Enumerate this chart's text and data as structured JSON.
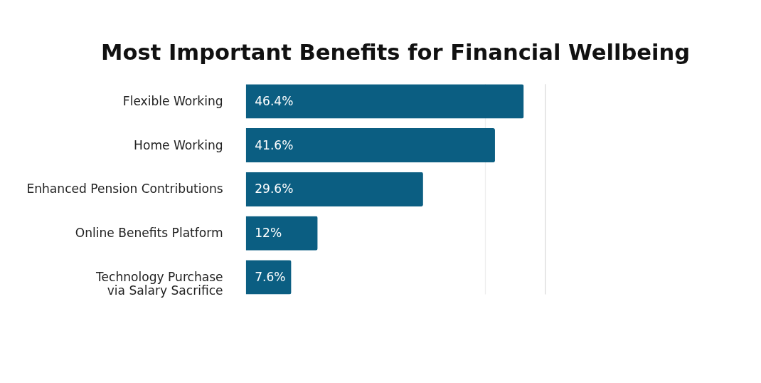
{
  "chart_data": {
    "type": "bar",
    "orientation": "horizontal",
    "title": "Most Important Benefits for Financial Wellbeing",
    "categories": [
      "Flexible Working",
      "Home Working",
      "Enhanced Pension Contributions",
      "Online Benefits Platform",
      "Technology Purchase\nvia Salary Sacrifice"
    ],
    "values": [
      46.4,
      41.6,
      29.6,
      12,
      7.6
    ],
    "value_labels": [
      "46.4%",
      "41.6%",
      "29.6%",
      "12%",
      "7.6%"
    ],
    "color": "#0b5e82",
    "xlim": [
      0,
      50
    ],
    "ref_lines": [
      {
        "axis": "x",
        "value": 40,
        "color": "#eeeeee"
      },
      {
        "axis": "x",
        "value": 50,
        "color": "#dddddd"
      }
    ],
    "tick_labels": "y"
  }
}
